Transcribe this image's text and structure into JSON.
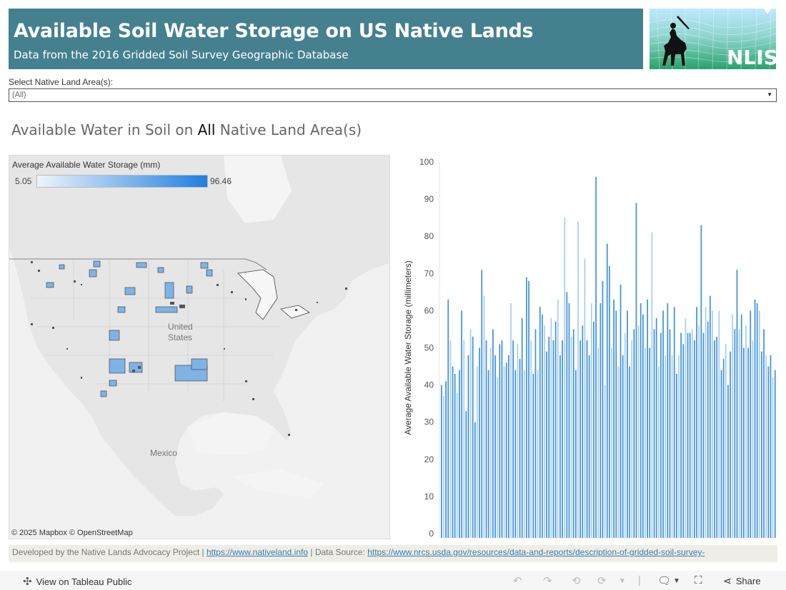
{
  "header": {
    "title": "Available Soil Water Storage on US Native Lands",
    "subtitle": "Data from the 2016 Gridded Soil Survey Geographic Database",
    "logo_text": "NLIS"
  },
  "filter": {
    "label": "Select Native Land Area(s):",
    "value": "(All)"
  },
  "section_title": {
    "prefix": "Available Water in Soil on ",
    "highlight": "All",
    "suffix": " Native Land Area(s)"
  },
  "map": {
    "legend_title": "Average Available Water Storage (mm)",
    "legend_min": "5.05",
    "legend_max": "96.46",
    "label_us_1": "United",
    "label_us_2": "States",
    "label_mexico": "Mexico",
    "credit": "© 2025 Mapbox  © OpenStreetMap",
    "colors": {
      "land": "#e8e8e8",
      "water": "#f4f4f4",
      "area_fill": "#7fb3e6",
      "area_stroke": "#333333"
    }
  },
  "chart_data": {
    "type": "bar",
    "ylabel": "Average Available Water Storage (millimeters)",
    "xlabel": "",
    "ylim": [
      0,
      100
    ],
    "yticks": [
      0,
      10,
      20,
      30,
      40,
      50,
      60,
      70,
      80,
      90,
      100
    ],
    "bar_color": "#3f93dc",
    "bar_color_light": "#a9cdf0",
    "values": [
      40,
      37,
      41,
      63,
      52,
      45,
      43,
      38,
      44,
      60,
      52,
      33,
      48,
      55,
      53,
      30,
      45,
      50,
      71,
      64,
      52,
      44,
      50,
      55,
      48,
      42,
      51,
      52,
      45,
      46,
      48,
      62,
      52,
      44,
      51,
      47,
      58,
      44,
      69,
      68,
      52,
      43,
      55,
      44,
      61,
      59,
      56,
      49,
      53,
      58,
      52,
      57,
      63,
      48,
      52,
      85,
      65,
      62,
      53,
      55,
      44,
      84,
      52,
      56,
      74,
      52,
      48,
      62,
      57,
      96,
      50,
      62,
      68,
      40,
      78,
      72,
      50,
      63,
      60,
      45,
      67,
      48,
      54,
      60,
      45,
      52,
      55,
      89,
      56,
      62,
      59,
      50,
      63,
      50,
      81,
      55,
      58,
      45,
      54,
      60,
      48,
      62,
      55,
      48,
      61,
      43,
      48,
      54,
      51,
      58,
      54,
      54,
      55,
      52,
      61,
      56,
      83,
      54,
      61,
      57,
      64,
      60,
      52,
      53,
      60,
      44,
      47,
      51,
      40,
      49,
      59,
      55,
      71,
      55,
      59,
      50,
      56,
      50,
      60,
      52,
      63,
      62,
      60,
      49,
      55,
      48,
      45,
      48,
      42,
      44
    ]
  },
  "footer": {
    "developed_by": "Developed by the Native Lands Advocacy Project | ",
    "link1": "https://www.nativeland.info",
    "data_source": " | Data Source: ",
    "link2": "https://www.nrcs.usda.gov/resources/data-and-reports/description-of-gridded-soil-survey-"
  },
  "toolbar": {
    "view_label": "View on Tableau Public",
    "share_label": "Share"
  }
}
